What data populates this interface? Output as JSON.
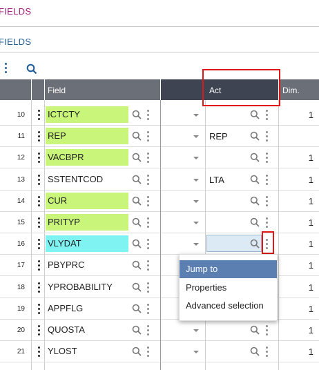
{
  "breadcrumbs": {
    "level1": "FIELDS",
    "level2": "FIELDS"
  },
  "colors": {
    "green_field": "#c8f57a",
    "cyan_field": "#7ff2f2",
    "header": "#6b6f77",
    "header_dark": "#3e4452",
    "menu_highlight": "#5b7fb0"
  },
  "columns": {
    "field": "Field",
    "act": "Act",
    "dim": "Dim."
  },
  "rows": [
    {
      "num": "10",
      "field": "ICTCTY",
      "act": "",
      "dim": "1",
      "hl": "green"
    },
    {
      "num": "11",
      "field": "REP",
      "act": "REP",
      "dim": "",
      "hl": "green"
    },
    {
      "num": "12",
      "field": "VACBPR",
      "act": "",
      "dim": "1",
      "hl": "green"
    },
    {
      "num": "13",
      "field": "SSTENTCOD",
      "act": "LTA",
      "dim": "1",
      "hl": ""
    },
    {
      "num": "14",
      "field": "CUR",
      "act": "",
      "dim": "1",
      "hl": "green"
    },
    {
      "num": "15",
      "field": "PRITYP",
      "act": "",
      "dim": "1",
      "hl": "green"
    },
    {
      "num": "16",
      "field": "VLYDAT",
      "act": "",
      "dim": "1",
      "hl": "cyan"
    },
    {
      "num": "17",
      "field": "PBYPRC",
      "act": "",
      "dim": "1",
      "hl": ""
    },
    {
      "num": "18",
      "field": "YPROBABILITY",
      "act": "",
      "dim": "1",
      "hl": ""
    },
    {
      "num": "19",
      "field": "APPFLG",
      "act": "",
      "dim": "1",
      "hl": ""
    },
    {
      "num": "20",
      "field": "QUOSTA",
      "act": "",
      "dim": "1",
      "hl": ""
    },
    {
      "num": "21",
      "field": "YLOST",
      "act": "",
      "dim": "1",
      "hl": ""
    }
  ],
  "context_menu": {
    "items": [
      "Jump to",
      "Properties",
      "Advanced selection"
    ]
  }
}
